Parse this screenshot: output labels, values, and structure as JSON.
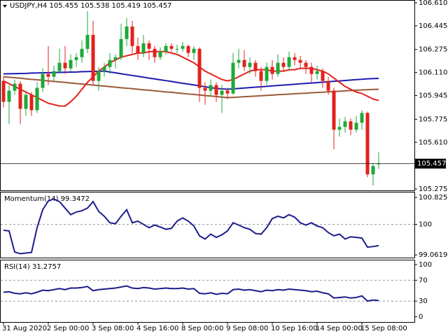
{
  "chart_data": [
    {
      "type": "candlestick",
      "title": "USDJPY,H4 105.455 105.538 105.419 105.457",
      "categories": [
        "31 Aug 2020",
        null,
        null,
        null,
        null,
        null,
        null,
        null,
        "2 Sep 00:00",
        null,
        null,
        null,
        null,
        null,
        null,
        null,
        "3 Sep 08:00",
        null,
        null,
        null,
        null,
        null,
        null,
        null,
        "4 Sep 16:00",
        null,
        null,
        null,
        null,
        null,
        null,
        null,
        "8 Sep 00:00",
        null,
        null,
        null,
        null,
        null,
        null,
        null,
        "9 Sep 08:00",
        null,
        null,
        null,
        null,
        null,
        null,
        null,
        "10 Sep 16:00",
        null,
        null,
        null,
        null,
        null,
        null,
        null,
        "14 Sep 00:00",
        null,
        null,
        null,
        null,
        null,
        null,
        null,
        "15 Sep 08:00",
        null,
        null,
        null
      ],
      "open": [
        106.05,
        105.9,
        105.98,
        106.03,
        105.85,
        105.95,
        105.84,
        106.0,
        106.1,
        106.08,
        106.12,
        106.18,
        106.14,
        106.2,
        106.22,
        106.28,
        106.38,
        106.05,
        106.12,
        106.15,
        106.2,
        106.22,
        106.35,
        106.44,
        106.3,
        106.25,
        106.32,
        106.28,
        106.22,
        106.26,
        106.3,
        106.28,
        106.28,
        106.3,
        106.25,
        106.28,
        106.0,
        105.98,
        106.02,
        105.95,
        105.98,
        105.96,
        106.18,
        106.2,
        106.15,
        106.18,
        106.12,
        106.05,
        106.15,
        106.1,
        106.18,
        106.15,
        106.22,
        106.2,
        106.18,
        106.15,
        106.1,
        106.12,
        106.05,
        105.98,
        105.7,
        105.72,
        105.76,
        105.7,
        105.75,
        105.82,
        105.38,
        105.455
      ],
      "high": [
        106.08,
        106.02,
        106.06,
        106.05,
        105.98,
        105.97,
        106.04,
        106.14,
        106.3,
        106.16,
        106.28,
        106.3,
        106.24,
        106.25,
        106.34,
        106.55,
        106.48,
        106.15,
        106.18,
        106.25,
        106.24,
        106.46,
        106.5,
        106.48,
        106.36,
        106.38,
        106.34,
        106.3,
        106.29,
        106.32,
        106.32,
        106.31,
        106.33,
        106.31,
        106.3,
        106.29,
        106.04,
        106.06,
        106.04,
        106.02,
        106.0,
        106.25,
        106.28,
        106.27,
        106.22,
        106.2,
        106.15,
        106.18,
        106.2,
        106.24,
        106.22,
        106.26,
        106.25,
        106.23,
        106.2,
        106.18,
        106.16,
        106.14,
        106.08,
        106.0,
        105.78,
        105.79,
        105.78,
        105.8,
        105.84,
        105.83,
        105.46,
        105.538
      ],
      "low": [
        105.86,
        105.74,
        105.95,
        105.74,
        105.8,
        105.8,
        105.82,
        105.97,
        106.02,
        106.05,
        106.1,
        106.1,
        106.12,
        106.15,
        106.18,
        106.25,
        106.02,
        105.98,
        106.08,
        106.1,
        106.14,
        106.2,
        106.3,
        106.25,
        106.2,
        106.22,
        106.2,
        106.18,
        106.2,
        106.24,
        106.26,
        106.25,
        106.26,
        106.22,
        106.2,
        105.9,
        105.88,
        105.94,
        105.9,
        105.82,
        105.92,
        105.95,
        106.14,
        106.12,
        106.1,
        106.08,
        105.98,
        106.02,
        106.06,
        106.08,
        106.12,
        106.12,
        106.16,
        106.14,
        106.1,
        106.04,
        106.06,
        106.0,
        105.95,
        105.56,
        105.65,
        105.68,
        105.66,
        105.68,
        105.7,
        105.36,
        105.3,
        105.419
      ],
      "close": [
        105.9,
        105.98,
        106.03,
        105.85,
        105.95,
        105.84,
        106.0,
        106.1,
        106.08,
        106.12,
        106.18,
        106.14,
        106.2,
        106.22,
        106.28,
        106.38,
        106.05,
        106.12,
        106.15,
        106.2,
        106.22,
        106.35,
        106.44,
        106.3,
        106.25,
        106.32,
        106.28,
        106.22,
        106.26,
        106.3,
        106.28,
        106.28,
        106.3,
        106.25,
        106.28,
        106.0,
        105.98,
        106.02,
        105.95,
        105.98,
        105.96,
        106.18,
        106.2,
        106.15,
        106.18,
        106.12,
        106.05,
        106.15,
        106.1,
        106.18,
        106.15,
        106.22,
        106.2,
        106.18,
        106.15,
        106.1,
        106.12,
        106.05,
        105.98,
        105.7,
        105.72,
        105.76,
        105.7,
        105.75,
        105.82,
        105.38,
        105.44,
        105.457
      ],
      "up_color": "#1fa83a",
      "down_color": "#e3211c",
      "overlays": [
        {
          "color": "#1c1cb0",
          "values": [
            106.1,
            106.101,
            106.102,
            106.103,
            106.104,
            106.106,
            106.107,
            106.108,
            106.109,
            106.11,
            106.111,
            106.112,
            106.113,
            106.114,
            106.116,
            106.117,
            106.118,
            106.119,
            106.12,
            106.114,
            106.108,
            106.101,
            106.095,
            106.089,
            106.083,
            106.077,
            106.07,
            106.064,
            106.058,
            106.052,
            106.046,
            106.039,
            106.033,
            106.027,
            106.021,
            106.015,
            106.008,
            106.002,
            105.996,
            105.993,
            105.99,
            105.993,
            105.996,
            105.999,
            106.002,
            106.005,
            106.008,
            106.011,
            106.014,
            106.017,
            106.02,
            106.023,
            106.026,
            106.029,
            106.032,
            106.035,
            106.038,
            106.041,
            106.044,
            106.047,
            106.05,
            106.053,
            106.056,
            106.059,
            106.062,
            106.065,
            106.067,
            106.068
          ]
        },
        {
          "color": "#9b5a3a",
          "values": [
            106.08,
            106.076,
            106.073,
            106.069,
            106.065,
            106.061,
            106.058,
            106.054,
            106.05,
            106.046,
            106.043,
            106.039,
            106.035,
            106.031,
            106.028,
            106.024,
            106.02,
            106.016,
            106.013,
            106.009,
            106.005,
            106.001,
            105.998,
            105.994,
            105.99,
            105.986,
            105.983,
            105.979,
            105.975,
            105.971,
            105.968,
            105.964,
            105.96,
            105.956,
            105.953,
            105.949,
            105.945,
            105.941,
            105.938,
            105.934,
            105.93,
            105.932,
            105.934,
            105.937,
            105.939,
            105.941,
            105.944,
            105.946,
            105.948,
            105.951,
            105.953,
            105.955,
            105.958,
            105.96,
            105.962,
            105.965,
            105.967,
            105.969,
            105.972,
            105.974,
            105.976,
            105.979,
            105.981,
            105.983,
            105.985,
            105.987,
            105.989,
            105.99
          ]
        },
        {
          "color": "#e3211c",
          "values": [
            106.05,
            106.03,
            106.01,
            105.99,
            105.97,
            105.95,
            105.93,
            105.91,
            105.89,
            105.88,
            105.87,
            105.87,
            105.9,
            105.94,
            105.99,
            106.04,
            106.08,
            106.12,
            106.15,
            106.18,
            106.2,
            106.22,
            106.23,
            106.24,
            106.25,
            106.25,
            106.26,
            106.26,
            106.26,
            106.26,
            106.25,
            106.24,
            106.22,
            106.2,
            106.18,
            106.15,
            106.12,
            106.1,
            106.08,
            106.06,
            106.05,
            106.06,
            106.08,
            106.1,
            106.12,
            106.13,
            106.13,
            106.13,
            106.12,
            106.12,
            106.12,
            106.13,
            106.13,
            106.14,
            106.14,
            106.14,
            106.13,
            106.12,
            106.1,
            106.07,
            106.04,
            106.01,
            105.99,
            105.97,
            105.96,
            105.94,
            105.92,
            105.91
          ]
        }
      ],
      "ylim": [
        105.26,
        106.625
      ],
      "yticks": [
        {
          "value": 106.61,
          "label": "106.610"
        },
        106.445,
        106.275,
        {
          "value": 106.11,
          "label": "106.110"
        },
        105.945,
        105.775,
        {
          "value": 105.61,
          "label": "105.610"
        },
        105.275
      ],
      "price_label": {
        "value": 105.457,
        "label": "105.457"
      }
    },
    {
      "type": "line",
      "title": "Momentum(14) 99.3472",
      "color": "#1c1c8c",
      "values": [
        99.82,
        99.8,
        99.15,
        99.1,
        99.12,
        99.14,
        99.9,
        100.45,
        100.72,
        100.78,
        100.7,
        100.5,
        100.3,
        100.38,
        100.42,
        100.5,
        100.7,
        100.4,
        100.25,
        100.05,
        100.02,
        100.25,
        100.45,
        100.05,
        100.1,
        100.0,
        99.9,
        99.98,
        99.92,
        99.85,
        99.88,
        100.1,
        100.2,
        100.1,
        99.95,
        99.65,
        99.55,
        99.7,
        99.6,
        99.68,
        99.8,
        100.05,
        99.98,
        99.9,
        99.85,
        99.72,
        99.7,
        99.9,
        100.18,
        100.25,
        100.2,
        100.3,
        100.22,
        100.05,
        99.98,
        100.05,
        99.95,
        99.9,
        99.75,
        99.65,
        99.7,
        99.55,
        99.62,
        99.6,
        99.58,
        99.3,
        99.32,
        99.3472
      ],
      "ylim": [
        98.98,
        100.98
      ],
      "yticks": [
        100.8259,
        100,
        99.0619
      ],
      "levels": [
        100
      ]
    },
    {
      "type": "line",
      "title": "RSI(14) 31.2757",
      "color": "#1c1c8c",
      "values": [
        47,
        48,
        45,
        44,
        46,
        44,
        47,
        51,
        50,
        52,
        54,
        52,
        55,
        55,
        56,
        58,
        50,
        52,
        53,
        54,
        55,
        57,
        59,
        55,
        54,
        56,
        55,
        53,
        54,
        55,
        54,
        54,
        55,
        53,
        54,
        45,
        44,
        46,
        43,
        45,
        44,
        52,
        53,
        51,
        52,
        50,
        48,
        51,
        50,
        52,
        51,
        53,
        52,
        51,
        50,
        48,
        49,
        46,
        44,
        36,
        37,
        38,
        36,
        37,
        40,
        30,
        32,
        31.2757
      ],
      "ylim": [
        -10,
        108
      ],
      "yticks": [
        100,
        70,
        30,
        0
      ],
      "levels": [
        70,
        30
      ]
    }
  ]
}
